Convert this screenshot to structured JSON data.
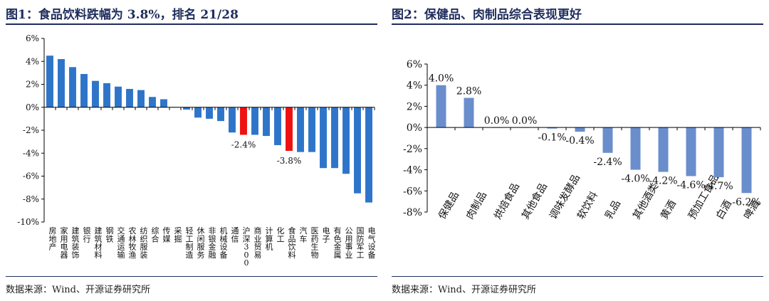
{
  "colors": {
    "title": "#1f2d5c",
    "bar_blue_1": "#2e75c9",
    "bar_highlight": "#ee1111",
    "bar_blue_2": "#6a8ecc"
  },
  "chart_data": [
    {
      "type": "bar",
      "title": "图1：食品饮料跌幅为 3.8%，排名 21/28",
      "source": "数据来源：Wind、开源证券研究所",
      "categories": [
        "房地产",
        "家用电器",
        "建筑装饰",
        "银行",
        "建筑材料",
        "钢铁",
        "交通运输",
        "农林牧渔",
        "纺织服装",
        "综合",
        "传媒",
        "采掘",
        "轻工制造",
        "休闲服务",
        "非银金融",
        "机械设备",
        "通信",
        "沪深300",
        "商业贸易",
        "计算机",
        "化工",
        "食品饮料",
        "汽车",
        "医药生物",
        "电子",
        "有色金属",
        "公用事业",
        "国防军工",
        "电气设备"
      ],
      "values": [
        4.5,
        4.2,
        3.5,
        2.9,
        2.3,
        2.1,
        1.8,
        1.6,
        1.5,
        0.9,
        0.7,
        0.0,
        -0.2,
        -0.9,
        -1.0,
        -1.2,
        -2.2,
        -2.4,
        -2.4,
        -2.5,
        -3.3,
        -3.8,
        -3.9,
        -3.9,
        -5.3,
        -5.3,
        -5.8,
        -7.5,
        -8.3
      ],
      "highlight": [
        "沪深300",
        "食品饮料"
      ],
      "data_labels": {
        "沪深300": "-2.4%",
        "食品饮料": "-3.8%"
      },
      "yticks": [
        "6%",
        "4%",
        "2%",
        "0%",
        "-2%",
        "-4%",
        "-6%",
        "-8%",
        "-10%"
      ],
      "ylim": [
        -10,
        6
      ]
    },
    {
      "type": "bar",
      "title": "图2：保健品、肉制品综合表现更好",
      "source": "数据来源：Wind、开源证券研究所",
      "categories": [
        "保健品",
        "肉制品",
        "烘焙食品",
        "其他食品",
        "调味发酵品",
        "软饮料",
        "乳品",
        "其他酒类",
        "黄酒",
        "预加工食品",
        "白酒",
        "啤酒"
      ],
      "values": [
        4.0,
        2.8,
        0.0,
        0.0,
        -0.1,
        -0.4,
        -2.4,
        -4.0,
        -4.2,
        -4.6,
        -4.7,
        -6.2
      ],
      "labels": [
        "4.0%",
        "2.8%",
        "0.0%",
        "0.0%",
        "-0.1%",
        "-0.4%",
        "-2.4%",
        "-4.0%",
        "-4.2%",
        "-4.6%",
        "-4.7%",
        "-6.2%"
      ],
      "yticks": [
        "6%",
        "4%",
        "2%",
        "0%",
        "-2%",
        "-4%",
        "-6%",
        "-8%"
      ],
      "ylim": [
        -8,
        6
      ]
    }
  ]
}
